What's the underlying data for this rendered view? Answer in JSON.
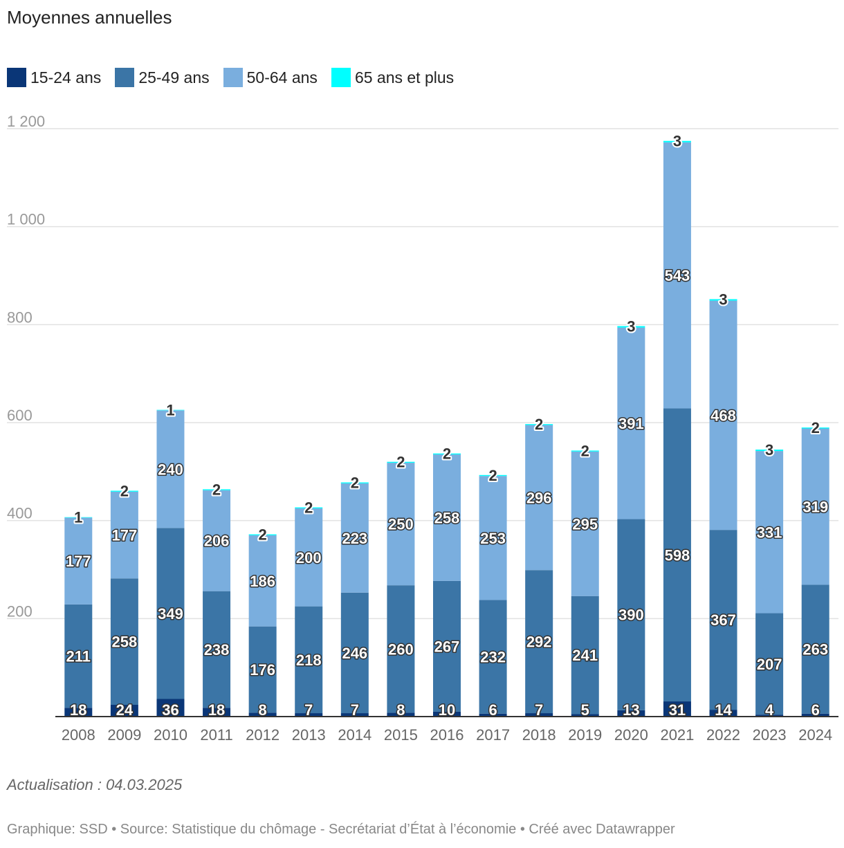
{
  "title": "Moyennes annuelles",
  "note": "Actualisation : 04.03.2025",
  "footer": "Graphique: SSD • Source: Statistique du chômage - Secrétariat d’État à l’économie • Créé avec Datawrapper",
  "chart_data": {
    "type": "bar",
    "stacked": true,
    "categories": [
      "2008",
      "2009",
      "2010",
      "2011",
      "2012",
      "2013",
      "2014",
      "2015",
      "2016",
      "2017",
      "2018",
      "2019",
      "2020",
      "2021",
      "2022",
      "2023",
      "2024"
    ],
    "series": [
      {
        "name": "15-24 ans",
        "color": "#0a3677",
        "values": [
          18,
          24,
          36,
          18,
          8,
          7,
          7,
          8,
          10,
          6,
          7,
          5,
          13,
          31,
          14,
          4,
          6
        ]
      },
      {
        "name": "25-49 ans",
        "color": "#3b75a6",
        "values": [
          211,
          258,
          349,
          238,
          176,
          218,
          246,
          260,
          267,
          232,
          292,
          241,
          390,
          598,
          367,
          207,
          263
        ]
      },
      {
        "name": "50-64 ans",
        "color": "#7aaede",
        "values": [
          177,
          177,
          240,
          206,
          186,
          200,
          223,
          250,
          258,
          253,
          296,
          295,
          391,
          543,
          468,
          331,
          319
        ]
      },
      {
        "name": "65 ans et plus",
        "color": "#00ffff",
        "values": [
          1,
          2,
          1,
          2,
          2,
          2,
          2,
          2,
          2,
          2,
          2,
          2,
          3,
          3,
          3,
          3,
          2
        ]
      }
    ],
    "ylim": [
      0,
      1200
    ],
    "yticks": [
      200,
      400,
      600,
      800,
      1000,
      1200
    ],
    "ytick_labels": [
      "200",
      "400",
      "600",
      "800",
      "1 000",
      "1 200"
    ],
    "grid": true,
    "legend_position": "top-left"
  }
}
